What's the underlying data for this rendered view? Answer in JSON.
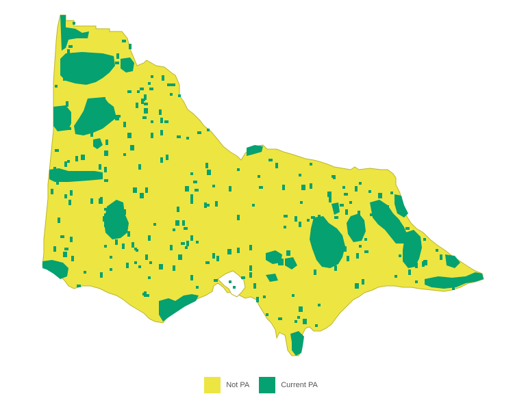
{
  "map": {
    "region": "Victoria",
    "colors": {
      "not_pa": "#ede542",
      "current_pa": "#05a171",
      "border": "#b9b52f",
      "background": "#ffffff"
    }
  },
  "legend": {
    "items": [
      {
        "label": "Not PA",
        "color": "#ede542"
      },
      {
        "label": "Current PA",
        "color": "#05a171"
      }
    ]
  }
}
